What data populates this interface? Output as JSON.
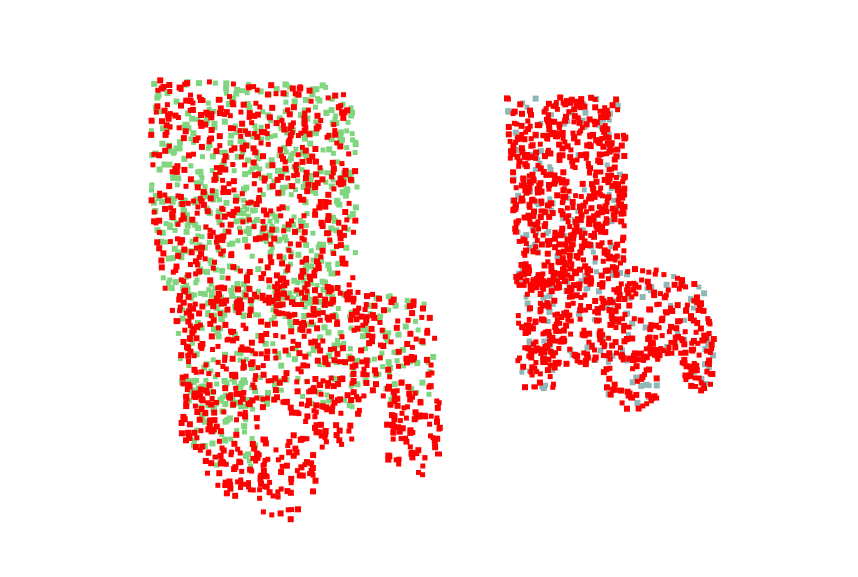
{
  "figure": {
    "description": "",
    "panels": [
      {
        "id": "left-chair",
        "colors": {
          "primary": "#ff0000",
          "secondary": "#7fd67f"
        }
      },
      {
        "id": "right-chair",
        "colors": {
          "primary": "#ff0000",
          "secondary": "#8fb7b7"
        }
      }
    ]
  }
}
